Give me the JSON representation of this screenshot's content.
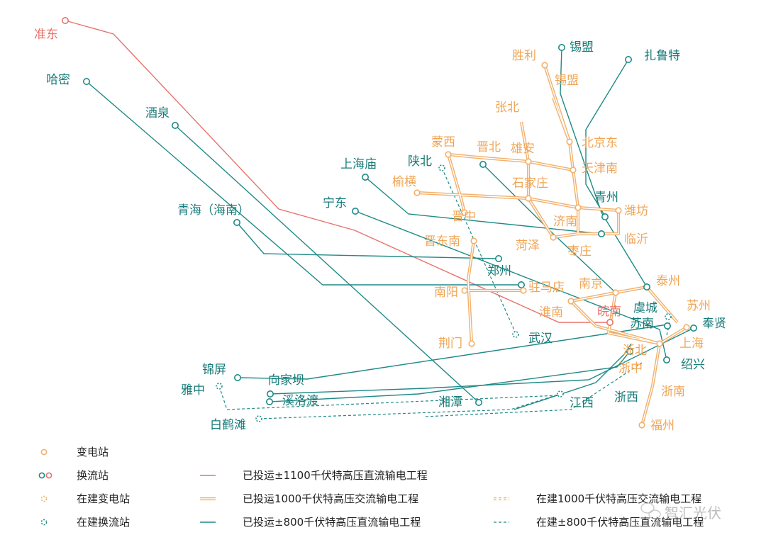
{
  "colors": {
    "uhv_ac": "#f2b06c",
    "uhv_dc": "#1f8a87",
    "dc1100": "#e8726b",
    "label_ac": "#f0a555",
    "label_dc": "#167b78",
    "label_1100": "#e8726b"
  },
  "stations": {
    "zhundong": "准东",
    "hami": "哈密",
    "jiuquan": "酒泉",
    "qinghai": "青海（海南）",
    "shanghaimiao": "上海庙",
    "ningdong": "宁东",
    "shaanbei": "陕北",
    "ximeng_dc": "锡盟",
    "zhalute": "扎鲁特",
    "shengli": "胜利",
    "ximeng_ac": "锡盟",
    "zhangbei": "张北",
    "mengxi": "蒙西",
    "jinbei": "晋北",
    "xiongan": "雄安",
    "beijingdong": "北京东",
    "tianjinnan": "天津南",
    "yuheng": "榆横",
    "shijiazhuang": "石家庄",
    "qingzhou": "青州",
    "weifang": "潍坊",
    "jinzhong": "晋中",
    "jinan": "济南",
    "linyi": "临沂",
    "jindongnan": "晋东南",
    "heze": "菏泽",
    "zaozhuang": "枣庄",
    "zhengzhou": "郑州",
    "nanyang": "南阳",
    "zhumadian": "驻马店",
    "nanjing": "南京",
    "taizhou": "泰州",
    "huainan": "淮南",
    "wannan": "皖南",
    "yucheng": "虞城",
    "suzhou": "苏州",
    "sunan": "苏南",
    "fengxian": "奉贤",
    "jingmen": "荆门",
    "wuhan": "武汉",
    "zhebei": "浙北",
    "shanghai": "上海",
    "shaoxing": "绍兴",
    "zhezhong": "浙中",
    "jinping": "锦屏",
    "xiangjiaba": "向家坝",
    "yazhong": "雅中",
    "xiluodu": "溪洛渡",
    "xiangtan": "湘潭",
    "jiangxi": "江西",
    "zhexi": "浙西",
    "zhenan": "浙南",
    "baihetan": "白鹤滩",
    "fuzhou": "福州"
  },
  "legend": {
    "substation": "变电站",
    "converter": "换流站",
    "substation_building": "在建变电站",
    "converter_building": "在建换流站",
    "dc1100": "已投运±1100千伏特高压直流输电工程",
    "ac1000": "已投运1000千伏特高压交流输电工程",
    "dc800": "已投运±800千伏特高压直流输电工程",
    "ac1000_building": "在建1000千伏特高压交流输电工程",
    "dc800_building": "在建±800千伏特高压直流输电工程"
  },
  "watermark": "智汇光伏"
}
